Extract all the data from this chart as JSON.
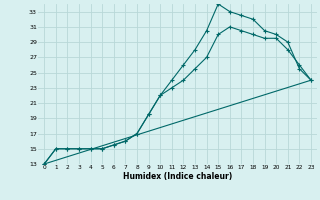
{
  "title": "",
  "xlabel": "Humidex (Indice chaleur)",
  "ylabel": "",
  "background_color": "#d8f0f0",
  "grid_color": "#b8d8d8",
  "line_color": "#006868",
  "xlim": [
    -0.5,
    23.5
  ],
  "ylim": [
    13,
    34
  ],
  "yticks": [
    13,
    15,
    17,
    19,
    21,
    23,
    25,
    27,
    29,
    31,
    33
  ],
  "xticks": [
    0,
    1,
    2,
    3,
    4,
    5,
    6,
    7,
    8,
    9,
    10,
    11,
    12,
    13,
    14,
    15,
    16,
    17,
    18,
    19,
    20,
    21,
    22,
    23
  ],
  "series1_x": [
    0,
    1,
    2,
    3,
    4,
    5,
    6,
    7,
    8,
    9,
    10,
    11,
    12,
    13,
    14,
    15,
    16,
    17,
    18,
    19,
    20,
    21,
    22,
    23
  ],
  "series1_y": [
    13,
    15,
    15,
    15,
    15,
    15,
    15.5,
    16,
    17,
    19.5,
    22,
    24,
    26,
    28,
    30.5,
    34,
    33,
    32.5,
    32,
    30.5,
    30,
    29,
    25.5,
    24
  ],
  "series2_x": [
    0,
    1,
    2,
    3,
    4,
    5,
    6,
    7,
    8,
    9,
    10,
    11,
    12,
    13,
    14,
    15,
    16,
    17,
    18,
    19,
    20,
    21,
    22,
    23
  ],
  "series2_y": [
    13,
    15,
    15,
    15,
    15,
    15,
    15.5,
    16,
    17,
    19.5,
    22,
    23,
    24,
    25.5,
    27,
    30,
    31,
    30.5,
    30,
    29.5,
    29.5,
    28,
    26,
    24
  ],
  "series3_x": [
    0,
    23
  ],
  "series3_y": [
    13,
    24
  ]
}
